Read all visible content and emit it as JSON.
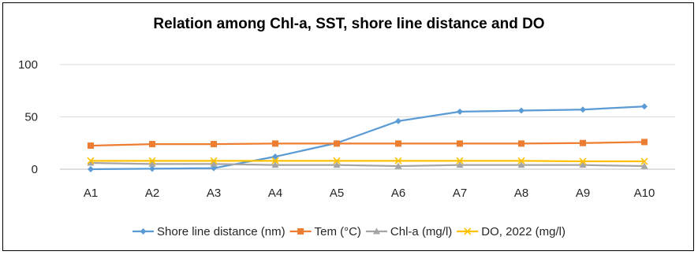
{
  "chart_data": {
    "type": "line",
    "title": "Relation among Chl-a, SST, shore line distance and DO",
    "xlabel": "",
    "ylabel": "",
    "categories": [
      "A1",
      "A2",
      "A3",
      "A4",
      "A5",
      "A6",
      "A7",
      "A8",
      "A9",
      "A10"
    ],
    "ylim": [
      0,
      100
    ],
    "yticks": [
      0,
      50,
      100
    ],
    "grid": true,
    "legend_position": "bottom",
    "series": [
      {
        "name": "Shore line distance (nm)",
        "color": "#5B9BD5",
        "marker": "diamond",
        "values": [
          0,
          0.5,
          1,
          12,
          25,
          46,
          55,
          56,
          57,
          60
        ]
      },
      {
        "name": "Tem (°C)",
        "color": "#ED7D31",
        "marker": "square",
        "values": [
          22.5,
          24,
          24,
          24.5,
          24.5,
          24.5,
          24.5,
          24.5,
          25,
          26
        ]
      },
      {
        "name": "Chl-a (mg/l)",
        "color": "#A5A5A5",
        "marker": "triangle",
        "values": [
          6,
          5,
          5,
          4,
          4,
          3,
          4,
          4,
          4,
          3
        ]
      },
      {
        "name": "DO, 2022 (mg/l)",
        "color": "#FFC000",
        "marker": "x",
        "values": [
          8,
          8,
          8,
          8,
          8,
          8,
          8,
          8,
          7.5,
          7.5
        ]
      }
    ]
  }
}
